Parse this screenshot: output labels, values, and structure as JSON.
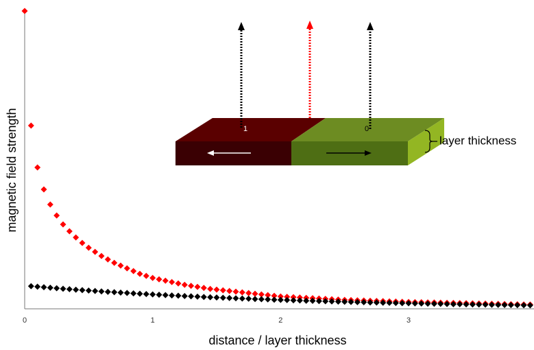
{
  "chart_data": {
    "type": "scatter",
    "x_label": "distance / layer thickness",
    "y_label": "magnetic field strength",
    "xlim": [
      0,
      3.98
    ],
    "xticks": [
      0,
      1,
      2,
      3
    ],
    "ylim": [
      0,
      438
    ],
    "grid": false,
    "series": [
      {
        "color": "#ff0000",
        "x": [
          0,
          0.05,
          0.1,
          0.15,
          0.2,
          0.25,
          0.3,
          0.35,
          0.4,
          0.45,
          0.5,
          0.55,
          0.6,
          0.65,
          0.7,
          0.75,
          0.8,
          0.85,
          0.9,
          0.95,
          1,
          1.05,
          1.1,
          1.15,
          1.2,
          1.25,
          1.3,
          1.35,
          1.4,
          1.45,
          1.5,
          1.55,
          1.6,
          1.65,
          1.7,
          1.75,
          1.8,
          1.85,
          1.9,
          1.95,
          2,
          2.05,
          2.1,
          2.15,
          2.2,
          2.25,
          2.3,
          2.35,
          2.4,
          2.45,
          2.5,
          2.55,
          2.6,
          2.65,
          2.7,
          2.75,
          2.8,
          2.85,
          2.9,
          2.95,
          3,
          3.05,
          3.1,
          3.15,
          3.2,
          3.25,
          3.3,
          3.35,
          3.4,
          3.45,
          3.5,
          3.55,
          3.6,
          3.65,
          3.7,
          3.75,
          3.8,
          3.85,
          3.9,
          3.95
        ],
        "values": [
          434,
          267,
          206,
          174,
          152,
          136,
          123,
          113,
          104,
          96,
          89,
          83,
          77,
          72,
          67,
          63,
          59,
          55,
          51,
          48,
          45,
          43,
          41,
          39,
          37,
          35,
          33.5,
          32,
          30.5,
          29,
          28,
          27,
          26,
          25,
          24,
          23,
          22,
          21,
          20,
          19,
          18,
          17.5,
          17,
          16.5,
          16,
          15.5,
          15,
          14.5,
          14,
          13.5,
          13,
          12.7,
          12.4,
          12.1,
          11.8,
          11.5,
          11.2,
          10.9,
          10.6,
          10.3,
          10,
          9.8,
          9.6,
          9.4,
          9.2,
          9,
          8.8,
          8.6,
          8.4,
          8.2,
          8,
          7.8,
          7.6,
          7.4,
          7.2,
          7,
          6.8,
          6.6,
          6.4,
          6.2
        ]
      },
      {
        "color": "#000000",
        "x": [
          0.05,
          0.1,
          0.15,
          0.2,
          0.25,
          0.3,
          0.35,
          0.4,
          0.45,
          0.5,
          0.55,
          0.6,
          0.65,
          0.7,
          0.75,
          0.8,
          0.85,
          0.9,
          0.95,
          1,
          1.05,
          1.1,
          1.15,
          1.2,
          1.25,
          1.3,
          1.35,
          1.4,
          1.45,
          1.5,
          1.55,
          1.6,
          1.65,
          1.7,
          1.75,
          1.8,
          1.85,
          1.9,
          1.95,
          2,
          2.05,
          2.1,
          2.15,
          2.2,
          2.25,
          2.3,
          2.35,
          2.4,
          2.45,
          2.5,
          2.55,
          2.6,
          2.65,
          2.7,
          2.75,
          2.8,
          2.85,
          2.9,
          2.95,
          3,
          3.05,
          3.1,
          3.15,
          3.2,
          3.25,
          3.3,
          3.35,
          3.4,
          3.45,
          3.5,
          3.55,
          3.6,
          3.65,
          3.7,
          3.75,
          3.8,
          3.85,
          3.9,
          3.95
        ],
        "values": [
          33,
          32.2,
          31.5,
          30.7,
          30.0,
          29.3,
          28.6,
          27.9,
          27.3,
          26.6,
          26.0,
          25.4,
          24.8,
          24.2,
          23.6,
          23.1,
          22.5,
          22.0,
          21.5,
          21.0,
          20.5,
          20.0,
          19.5,
          19.1,
          18.6,
          18.2,
          17.8,
          17.3,
          16.9,
          16.5,
          16.1,
          15.8,
          15.4,
          15.0,
          14.7,
          14.3,
          14.0,
          13.7,
          13.3,
          13.0,
          12.7,
          12.4,
          12.1,
          11.8,
          11.6,
          11.3,
          11.0,
          10.8,
          10.5,
          10.3,
          10.0,
          9.8,
          9.6,
          9.3,
          9.1,
          8.9,
          8.7,
          8.5,
          8.3,
          8.1,
          7.9,
          7.7,
          7.5,
          7.4,
          7.2,
          7.0,
          6.8,
          6.7,
          6.5,
          6.4,
          6.2,
          6.1,
          5.9,
          5.8,
          5.6,
          5.5,
          5.4,
          5.2,
          5.1
        ]
      }
    ],
    "inset": {
      "left_label": "1",
      "right_label": "0",
      "thickness_label": "layer thickness"
    }
  }
}
